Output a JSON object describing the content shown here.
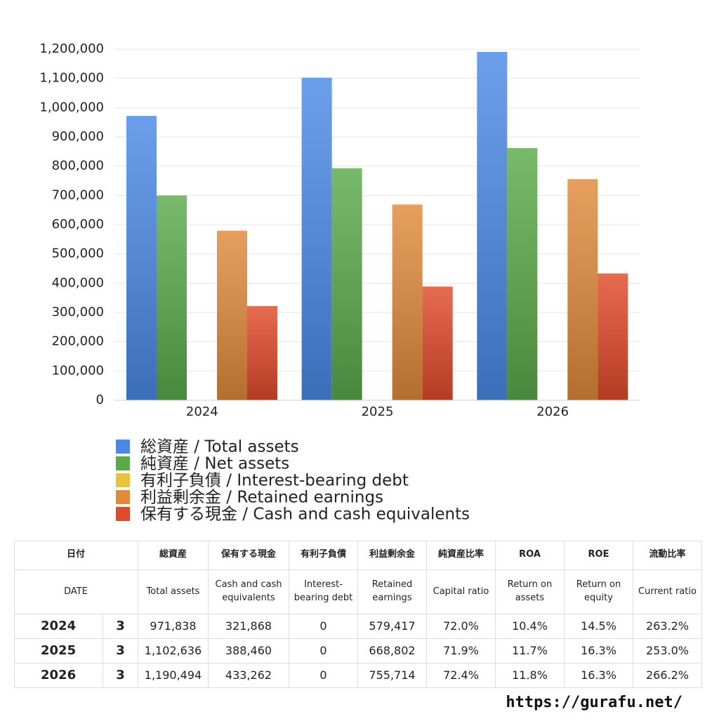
{
  "chart_data": {
    "type": "bar",
    "categories": [
      "2024",
      "2025",
      "2026"
    ],
    "series": [
      {
        "name": "総資産 / Total assets",
        "color": "#4a8ae6",
        "values": [
          971838,
          1102636,
          1190494
        ]
      },
      {
        "name": "純資産 / Net assets",
        "color": "#5aaa4a",
        "values": [
          699723,
          792795,
          861918
        ]
      },
      {
        "name": "有利子負債 / Interest-bearing debt",
        "color": "#e8c43a",
        "values": [
          0,
          0,
          0
        ]
      },
      {
        "name": "利益剰余金 / Retained earnings",
        "color": "#e08a3a",
        "values": [
          579417,
          668802,
          755714
        ]
      },
      {
        "name": "保有する現金 /  Cash and cash equivalents",
        "color": "#df4a2a",
        "values": [
          321868,
          388460,
          433262
        ]
      }
    ],
    "ylim": [
      0,
      1200000
    ],
    "yticks": [
      0,
      {
        "value": 100000,
        "label": "100,000"
      },
      {
        "value": 200000,
        "label": "200,000"
      },
      {
        "value": 300000,
        "label": "300,000"
      },
      {
        "value": 400000,
        "label": "400,000"
      },
      {
        "value": 500000,
        "label": "500,000"
      },
      {
        "value": 600000,
        "label": "600,000"
      },
      {
        "value": 700000,
        "label": "700,000"
      },
      {
        "value": 800000,
        "label": "800,000"
      },
      {
        "value": 900000,
        "label": "900,000"
      },
      {
        "value": 1000000,
        "label": "1,000,000"
      },
      {
        "value": 1100000,
        "label": "1,100,000"
      },
      {
        "value": 1200000,
        "label": "1,200,000"
      }
    ],
    "grid": true
  },
  "table": {
    "header_ja": [
      "日付",
      "総資産",
      "保有する現金",
      "有利子負債",
      "利益剰余金",
      "純資産比率",
      "ROA",
      "ROE",
      "流動比率"
    ],
    "header_en": [
      "DATE",
      "Total assets",
      "Cash and cash equivalents",
      "Interest-bearing debt",
      "Retained earnings",
      "Capital ratio",
      "Return on assets",
      "Return on equity",
      "Current ratio"
    ],
    "rows": [
      [
        "2024",
        "3",
        "971,838",
        "321,868",
        "0",
        "579,417",
        "72.0%",
        "10.4%",
        "14.5%",
        "263.2%"
      ],
      [
        "2025",
        "3",
        "1,102,636",
        "388,460",
        "0",
        "668,802",
        "71.9%",
        "11.7%",
        "16.3%",
        "253.0%"
      ],
      [
        "2026",
        "3",
        "1,190,494",
        "433,262",
        "0",
        "755,714",
        "72.4%",
        "11.8%",
        "16.3%",
        "266.2%"
      ]
    ]
  },
  "footer": "https://gurafu.net/"
}
